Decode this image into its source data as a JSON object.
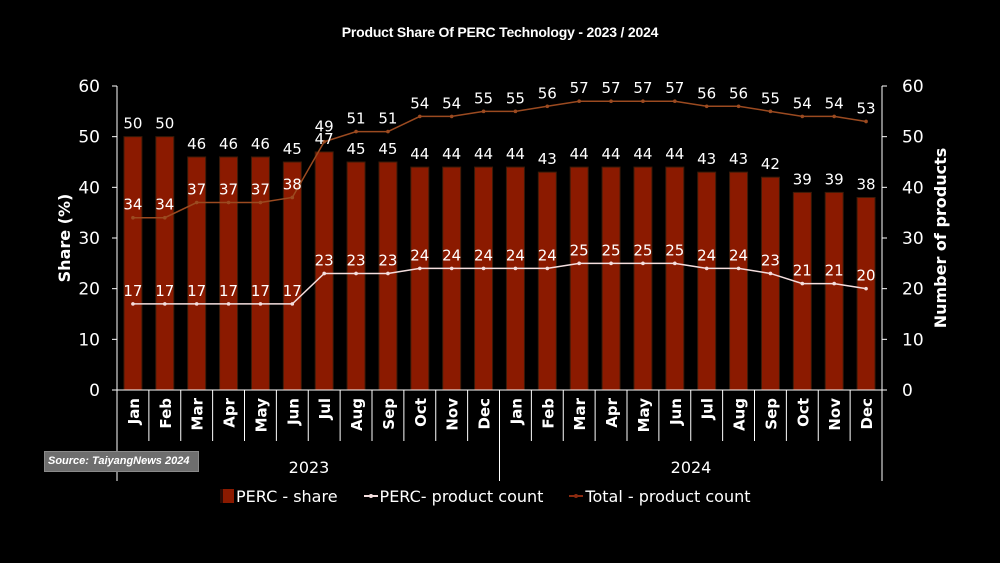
{
  "title": "Product Share Of PERC Technology - 2023 / 2024",
  "source": "Source: TaiyangNews 2024",
  "axes": {
    "left_title": "Share (%)",
    "right_title": "Number of products",
    "ticks": [
      "0",
      "10",
      "20",
      "30",
      "40",
      "50",
      "60"
    ]
  },
  "legend": {
    "share": "PERC - share",
    "perc_count": "PERC- product count",
    "total_count": "Total - product count"
  },
  "years": [
    "2023",
    "2024"
  ],
  "colors": {
    "background": "#000000",
    "bar": "#8b1a00",
    "perc_line": "#f4dede",
    "total_line": "#9b4a20"
  },
  "chart_data": {
    "type": "bar",
    "title": "Product Share Of PERC Technology - 2023 / 2024",
    "xlabel": "",
    "ylabel": "Share (%)",
    "y2label": "Number of products",
    "ylim": [
      0,
      60
    ],
    "y2lim": [
      0,
      60
    ],
    "grid": false,
    "legend_position": "bottom",
    "categories": [
      "Jan",
      "Feb",
      "Mar",
      "Apr",
      "May",
      "Jun",
      "Jul",
      "Aug",
      "Sep",
      "Oct",
      "Nov",
      "Dec",
      "Jan",
      "Feb",
      "Mar",
      "Apr",
      "May",
      "Jun",
      "Jul",
      "Aug",
      "Sep",
      "Oct",
      "Nov",
      "Dec"
    ],
    "category_groups": [
      {
        "label": "2023",
        "months": 12
      },
      {
        "label": "2024",
        "months": 12
      }
    ],
    "series": [
      {
        "name": "PERC - share",
        "type": "bar",
        "axis": "left",
        "values": [
          50,
          50,
          46,
          46,
          46,
          45,
          47,
          45,
          45,
          44,
          44,
          44,
          44,
          43,
          44,
          44,
          44,
          44,
          43,
          43,
          42,
          39,
          39,
          38
        ]
      },
      {
        "name": "PERC- product count",
        "type": "line",
        "axis": "right",
        "values": [
          17,
          17,
          17,
          17,
          17,
          17,
          23,
          23,
          23,
          24,
          24,
          24,
          24,
          24,
          25,
          25,
          25,
          25,
          24,
          24,
          23,
          21,
          21,
          20
        ]
      },
      {
        "name": "Total - product count",
        "type": "line",
        "axis": "right",
        "values": [
          34,
          34,
          37,
          37,
          37,
          38,
          49,
          51,
          51,
          54,
          54,
          55,
          55,
          56,
          57,
          57,
          57,
          57,
          56,
          56,
          55,
          54,
          54,
          53
        ]
      }
    ]
  }
}
